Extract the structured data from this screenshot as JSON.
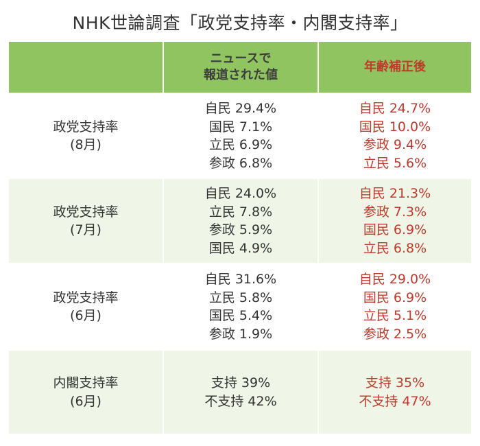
{
  "title": "NHK世論調査「政党支持率・内閣支持率」",
  "header": {
    "blank": "",
    "news_line1": "ニュースで",
    "news_line2": "報道された値",
    "adjusted": "年齢補正後"
  },
  "rows": [
    {
      "label_line1": "政党支持率",
      "label_line2": "(8月)",
      "news": [
        "自民 29.4%",
        "国民 7.1%",
        "立民 6.9%",
        "参政 6.8%"
      ],
      "adjusted": [
        "自民 24.7%",
        "国民 10.0%",
        "参政 9.4%",
        "立民 5.6%"
      ]
    },
    {
      "label_line1": "政党支持率",
      "label_line2": "(7月)",
      "news": [
        "自民 24.0%",
        "立民 7.8%",
        "参政 5.9%",
        "国民 4.9%"
      ],
      "adjusted": [
        "自民 21.3%",
        "参政 7.3%",
        "国民 6.9%",
        "立民 6.8%"
      ]
    },
    {
      "label_line1": "政党支持率",
      "label_line2": "(6月)",
      "news": [
        "自民 31.6%",
        "立民 5.8%",
        "国民 5.4%",
        "参政 1.9%"
      ],
      "adjusted": [
        "自民 29.0%",
        "国民 6.9%",
        "立民 5.1%",
        "参政 2.5%"
      ]
    },
    {
      "label_line1": "内閣支持率",
      "label_line2": "(6月)",
      "news": [
        "支持 39%",
        "不支持 42%"
      ],
      "adjusted": [
        "支持 35%",
        "不支持 47%"
      ]
    }
  ],
  "colors": {
    "header_bg": "#8fc461",
    "alt_row_bg": "#eff6e7",
    "adjusted_text": "#c0392b"
  }
}
